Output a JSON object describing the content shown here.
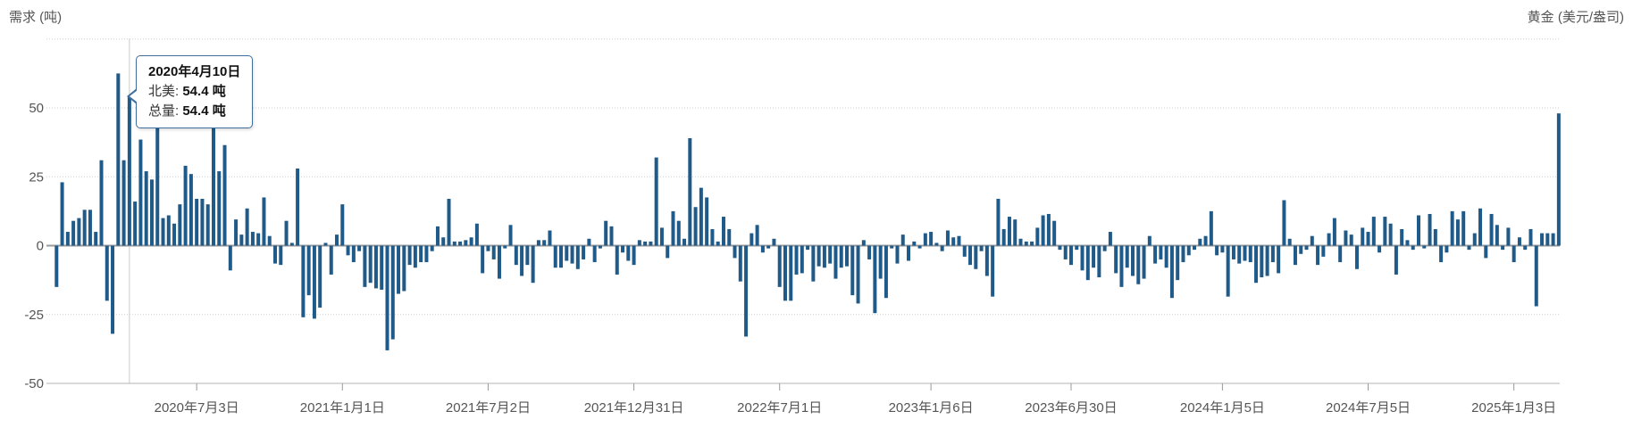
{
  "header": {
    "left_label": "需求 (吨)",
    "right_label": "黄金 (美元/盎司)"
  },
  "tooltip": {
    "title": "2020年4月10日",
    "rows": [
      {
        "label": "北美",
        "value": "54.4 吨"
      },
      {
        "label": "总量",
        "value": "54.4 吨"
      }
    ]
  },
  "colors": {
    "bar": "#1f5a89",
    "grid": "#cfcfcf",
    "zero_line": "#9b9b9b",
    "axis_line": "#b3b3b3",
    "tick": "#999999",
    "label": "#555555",
    "crosshair": "#cccccc",
    "tooltip_border": "#3f6e9e"
  },
  "chart_data": {
    "type": "bar",
    "title": "",
    "left_axis_label": "需求 (吨)",
    "right_axis_label": "黄金 (美元/盎司)",
    "frequency": "weekly",
    "start_date": "2020-01-10",
    "series": [
      {
        "name": "北美",
        "unit": "吨",
        "values": [
          -15,
          23,
          5,
          9,
          10,
          13,
          13,
          5,
          31,
          -20,
          -32,
          62.5,
          31,
          54.4,
          16,
          38.5,
          27,
          24,
          47,
          10,
          11,
          8,
          15,
          29,
          26,
          17,
          17,
          15,
          46,
          27,
          36.5,
          -9,
          9.5,
          4,
          13.5,
          5,
          4.5,
          17.5,
          3.5,
          -6.5,
          -7,
          9,
          1,
          28,
          -26,
          -18,
          -26.5,
          -22.5,
          1,
          -10.5,
          4,
          15,
          -3.5,
          -6,
          -2,
          -15,
          -13.5,
          -15.5,
          -16,
          -38,
          -34,
          -17.5,
          -16.5,
          -7,
          -8,
          -6,
          -6,
          -2,
          7,
          3,
          17,
          1.5,
          1.5,
          2,
          3,
          8,
          -10,
          -2,
          -5,
          -12,
          -1,
          7.5,
          -7,
          -11,
          -7,
          -13.5,
          2,
          2,
          5.5,
          -8,
          -8,
          -5.5,
          -6.5,
          -8.5,
          -5,
          2.5,
          -6,
          -1,
          9,
          7,
          -10.5,
          -2.5,
          -5.5,
          -7,
          2,
          1.5,
          1.5,
          32,
          6.5,
          -4.5,
          12.5,
          9,
          2.5,
          39,
          14,
          21,
          17.5,
          6,
          1.5,
          10.5,
          6,
          -4.5,
          -13,
          -33,
          4.5,
          7.5,
          -2.5,
          -1,
          2.5,
          -15,
          -20,
          -20,
          -10.5,
          -10,
          -1.5,
          -13,
          -7.5,
          -8,
          -6.5,
          -12,
          -8,
          -7.5,
          -18,
          -21,
          2,
          -5,
          -24.5,
          -12,
          -19,
          -1,
          -6.5,
          4,
          -5.5,
          1.5,
          -1,
          4.5,
          5,
          1,
          -2,
          5.5,
          3,
          3.5,
          -4,
          -7,
          -8.5,
          -2,
          -11,
          -18.5,
          17,
          6,
          10.5,
          9.5,
          2.5,
          1.5,
          1.5,
          6.5,
          11,
          11.5,
          9,
          -1.5,
          -5,
          -7,
          -1.5,
          -9,
          -12.5,
          -8,
          -11.5,
          -2,
          5,
          -10,
          -15,
          -8,
          -11,
          -14,
          -12,
          3.5,
          -6.5,
          -5,
          -8,
          -19,
          -12.5,
          -6,
          -3.5,
          -1.5,
          2.5,
          3.5,
          12.5,
          -3.5,
          -2.5,
          -18.5,
          -5,
          -6.5,
          -5.5,
          -6,
          -13.5,
          -11.5,
          -11,
          -6,
          -10,
          16.5,
          2.5,
          -7,
          -3,
          -1.5,
          3.5,
          -7,
          -4,
          4.5,
          10,
          -6,
          5.5,
          4,
          -8.5,
          6.5,
          5,
          10.5,
          -2.5,
          10.5,
          8,
          -10.5,
          6,
          2,
          -1.5,
          11,
          -1,
          11.5,
          6,
          -6,
          -2.5,
          12.5,
          9.5,
          12.5,
          -1.5,
          4.5,
          13.5,
          -4.5,
          11.5,
          7.5,
          -1.5,
          6.5,
          -6,
          3,
          -1.5,
          6,
          -22,
          4.5,
          4.5,
          4.5,
          48
        ]
      }
    ],
    "x_ticks": [
      {
        "index": 25,
        "label": "2020年7月3日"
      },
      {
        "index": 51,
        "label": "2021年1月1日"
      },
      {
        "index": 77,
        "label": "2021年7月2日"
      },
      {
        "index": 103,
        "label": "2021年12月31日"
      },
      {
        "index": 129,
        "label": "2022年7月1日"
      },
      {
        "index": 156,
        "label": "2023年1月6日"
      },
      {
        "index": 181,
        "label": "2023年6月30日"
      },
      {
        "index": 208,
        "label": "2024年1月5日"
      },
      {
        "index": 234,
        "label": "2024年7月5日"
      },
      {
        "index": 260,
        "label": "2025年1月3日"
      }
    ],
    "y_tick_labels": [
      "50",
      "25",
      "0",
      "-25",
      "-50"
    ],
    "y_gridline_values": [
      75,
      50,
      25,
      -25,
      -50
    ],
    "y_label_values": [
      50,
      25,
      0,
      -25,
      -50
    ],
    "ylim": [
      -50,
      75
    ],
    "grid": "dotted-horizontal",
    "legend": "none",
    "highlight": {
      "index": 13,
      "date_label": "2020年4月10日",
      "value": 54.4
    }
  }
}
